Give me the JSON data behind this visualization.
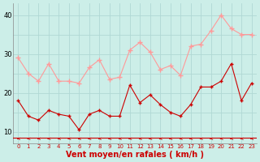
{
  "x": [
    0,
    1,
    2,
    3,
    4,
    5,
    6,
    7,
    8,
    9,
    10,
    11,
    12,
    13,
    14,
    15,
    16,
    17,
    18,
    19,
    20,
    21,
    22,
    23
  ],
  "rafales": [
    29,
    25,
    23,
    27.5,
    23,
    23,
    22.5,
    26.5,
    28.5,
    23.5,
    24,
    31,
    33,
    30.5,
    26,
    27,
    24.5,
    32,
    32.5,
    36,
    40,
    36.5,
    35,
    35
  ],
  "moyen": [
    18,
    14,
    13,
    15.5,
    14.5,
    14,
    10.5,
    14.5,
    15.5,
    14,
    14,
    22,
    17.5,
    19.5,
    17,
    15,
    14,
    17,
    21.5,
    21.5,
    23,
    27.5,
    18,
    22.5
  ],
  "bg_color": "#cceee8",
  "grid_color": "#b0d8d4",
  "line_color_rafales": "#ff9999",
  "line_color_moyen": "#cc0000",
  "xlabel": "Vent moyen/en rafales ( km/h )",
  "xlabel_color": "#cc0000",
  "xlabel_fontsize": 7,
  "ytick_labels": [
    "10",
    "",
    "20",
    "",
    "30",
    "",
    "40"
  ],
  "ytick_vals": [
    10,
    15,
    20,
    25,
    30,
    35,
    40
  ],
  "ylim": [
    7,
    43
  ],
  "xlim": [
    -0.5,
    23.5
  ],
  "arrow_color": "#cc0000"
}
